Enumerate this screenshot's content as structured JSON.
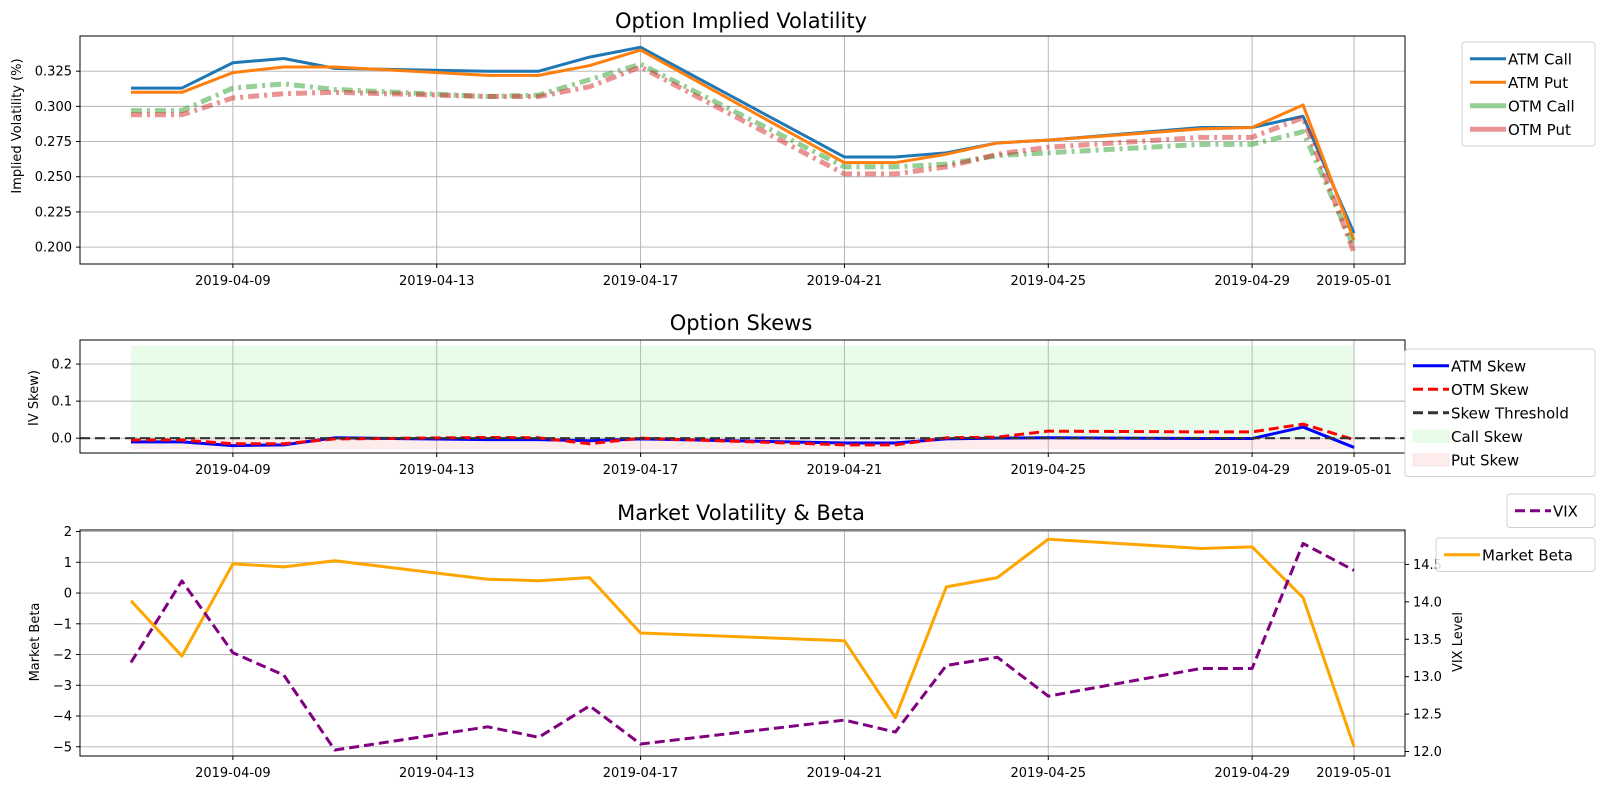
{
  "chart_data": [
    {
      "type": "line",
      "title": "Option Implied Volatility",
      "xlabel": "",
      "ylabel": "Implied Volatility (%)",
      "x": [
        "2019-04-07",
        "2019-04-08",
        "2019-04-09",
        "2019-04-10",
        "2019-04-11",
        "2019-04-14",
        "2019-04-15",
        "2019-04-16",
        "2019-04-17",
        "2019-04-21",
        "2019-04-22",
        "2019-04-23",
        "2019-04-24",
        "2019-04-25",
        "2019-04-28",
        "2019-04-29",
        "2019-04-30",
        "2019-05-01"
      ],
      "xlim": [
        "2019-04-06",
        "2019-05-02"
      ],
      "xticks": [
        "2019-04-09",
        "2019-04-13",
        "2019-04-17",
        "2019-04-21",
        "2019-04-25",
        "2019-04-29",
        "2019-05-01"
      ],
      "ylim": [
        0.188,
        0.35
      ],
      "yticks": [
        "0.200",
        "0.225",
        "0.250",
        "0.275",
        "0.300",
        "0.325"
      ],
      "grid": true,
      "legend": "outside-right-top",
      "series": [
        {
          "name": "ATM Call",
          "color": "#1f77b4",
          "style": "solid",
          "values": [
            0.313,
            0.313,
            0.331,
            0.334,
            0.327,
            0.325,
            0.325,
            0.335,
            0.342,
            0.264,
            0.264,
            0.267,
            0.274,
            0.276,
            0.285,
            0.285,
            0.293,
            0.21
          ]
        },
        {
          "name": "ATM Put",
          "color": "#ff7f0e",
          "style": "solid",
          "values": [
            0.31,
            0.31,
            0.324,
            0.328,
            0.328,
            0.322,
            0.322,
            0.329,
            0.34,
            0.26,
            0.26,
            0.266,
            0.274,
            0.276,
            0.284,
            0.285,
            0.301,
            0.205
          ]
        },
        {
          "name": "OTM Call",
          "color": "#2ca02c",
          "style": "dashdot",
          "values": [
            0.297,
            0.297,
            0.313,
            0.316,
            0.312,
            0.307,
            0.308,
            0.319,
            0.33,
            0.257,
            0.257,
            0.259,
            0.265,
            0.267,
            0.273,
            0.273,
            0.282,
            0.2
          ]
        },
        {
          "name": "OTM Put",
          "color": "#d62728",
          "style": "dashdot",
          "values": [
            0.294,
            0.294,
            0.306,
            0.309,
            0.31,
            0.307,
            0.307,
            0.314,
            0.328,
            0.252,
            0.252,
            0.257,
            0.266,
            0.271,
            0.278,
            0.278,
            0.292,
            0.196
          ]
        }
      ]
    },
    {
      "type": "line",
      "title": "Option Skews",
      "xlabel": "",
      "ylabel": "IV Skew)",
      "x": [
        "2019-04-07",
        "2019-04-08",
        "2019-04-09",
        "2019-04-10",
        "2019-04-11",
        "2019-04-14",
        "2019-04-15",
        "2019-04-16",
        "2019-04-17",
        "2019-04-21",
        "2019-04-22",
        "2019-04-23",
        "2019-04-24",
        "2019-04-25",
        "2019-04-28",
        "2019-04-29",
        "2019-04-30",
        "2019-05-01"
      ],
      "xlim": [
        "2019-04-06",
        "2019-05-02"
      ],
      "xticks": [
        "2019-04-09",
        "2019-04-13",
        "2019-04-17",
        "2019-04-21",
        "2019-04-25",
        "2019-04-29",
        "2019-05-01"
      ],
      "ylim": [
        -0.04,
        0.265
      ],
      "yticks": [
        "0.0",
        "0.1",
        "0.2"
      ],
      "grid": true,
      "legend": "outside-right",
      "series": [
        {
          "name": "ATM Skew",
          "color": "#0000ff",
          "style": "solid",
          "values": [
            -0.01,
            -0.01,
            -0.02,
            -0.018,
            0.001,
            -0.004,
            -0.004,
            -0.007,
            -0.002,
            -0.013,
            -0.013,
            -0.002,
            0.0,
            0.001,
            -0.001,
            -0.001,
            0.03,
            -0.025
          ]
        },
        {
          "name": "OTM Skew",
          "color": "#ff0000",
          "style": "dashed",
          "values": [
            -0.005,
            -0.005,
            -0.015,
            -0.015,
            -0.002,
            0.002,
            0.001,
            -0.015,
            0.0,
            -0.018,
            -0.018,
            0.001,
            0.003,
            0.019,
            0.017,
            0.017,
            0.038,
            -0.004
          ]
        },
        {
          "name": "Skew Threshold",
          "color": "#333333",
          "style": "dashed",
          "constant": 0.0
        }
      ],
      "fills": [
        {
          "name": "Call Skew",
          "color": "#90ee90",
          "from": 0.0,
          "to": 0.25
        },
        {
          "name": "Put Skew",
          "color": "#f4a0a0",
          "from": -0.03,
          "to": 0.0
        }
      ]
    },
    {
      "type": "line",
      "title": "Market Volatility & Beta",
      "xlabel": "",
      "ylabel": "Market Beta",
      "ylabel_right": "VIX Level",
      "x": [
        "2019-04-07",
        "2019-04-08",
        "2019-04-09",
        "2019-04-10",
        "2019-04-11",
        "2019-04-14",
        "2019-04-15",
        "2019-04-16",
        "2019-04-17",
        "2019-04-21",
        "2019-04-22",
        "2019-04-23",
        "2019-04-24",
        "2019-04-25",
        "2019-04-28",
        "2019-04-29",
        "2019-04-30",
        "2019-05-01"
      ],
      "xlim": [
        "2019-04-06",
        "2019-05-02"
      ],
      "xticks": [
        "2019-04-09",
        "2019-04-13",
        "2019-04-17",
        "2019-04-21",
        "2019-04-25",
        "2019-04-29",
        "2019-05-01"
      ],
      "ylim": [
        -5.3,
        2.05
      ],
      "yticks": [
        "2",
        "1",
        "0",
        "−1",
        "−2",
        "−3",
        "−4",
        "−5"
      ],
      "ylim_right": [
        11.94,
        14.96
      ],
      "yticks_right": [
        "12.0",
        "12.5",
        "13.0",
        "13.5",
        "14.0",
        "14.5"
      ],
      "grid": true,
      "legend": "outside-right",
      "series": [
        {
          "name": "Market Beta",
          "color": "#ffa500",
          "style": "solid",
          "axis": "left",
          "values": [
            -0.25,
            -2.05,
            0.95,
            0.85,
            1.05,
            0.45,
            0.4,
            0.5,
            -1.3,
            -1.55,
            -4.05,
            0.2,
            0.5,
            1.75,
            1.45,
            1.5,
            -0.15,
            -5.0
          ]
        },
        {
          "name": "VIX",
          "color": "#800080",
          "style": "dashed",
          "axis": "right",
          "values": [
            13.19,
            14.28,
            13.32,
            13.02,
            12.02,
            12.33,
            12.19,
            12.61,
            12.1,
            12.42,
            12.26,
            13.15,
            13.26,
            12.74,
            13.11,
            13.11,
            14.78,
            14.42
          ]
        }
      ]
    }
  ]
}
